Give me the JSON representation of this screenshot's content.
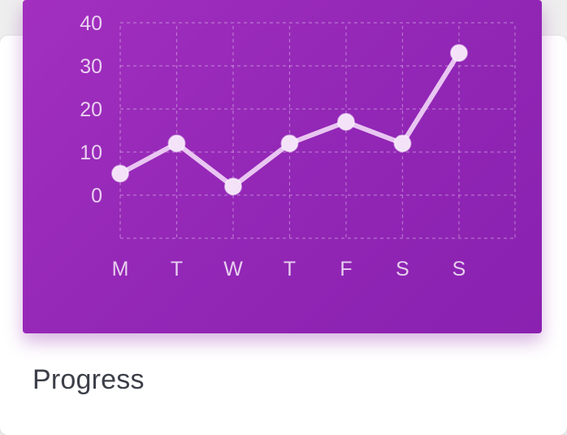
{
  "card": {
    "title": "Progress"
  },
  "chart_data": {
    "type": "line",
    "categories": [
      "M",
      "T",
      "W",
      "T",
      "F",
      "S",
      "S"
    ],
    "series": [
      {
        "values": [
          5,
          12,
          2,
          12,
          17,
          12,
          33
        ]
      }
    ],
    "y_ticks": [
      "0",
      "10",
      "20",
      "30",
      "40"
    ],
    "ylim": [
      0,
      40
    ],
    "grid": true,
    "colors": {
      "background_start": "#a22fbf",
      "background_end": "#8a21b0",
      "line": "#f0d4f6",
      "point": "#f3e2f8",
      "grid": "rgba(255,255,255,0.35)"
    }
  }
}
